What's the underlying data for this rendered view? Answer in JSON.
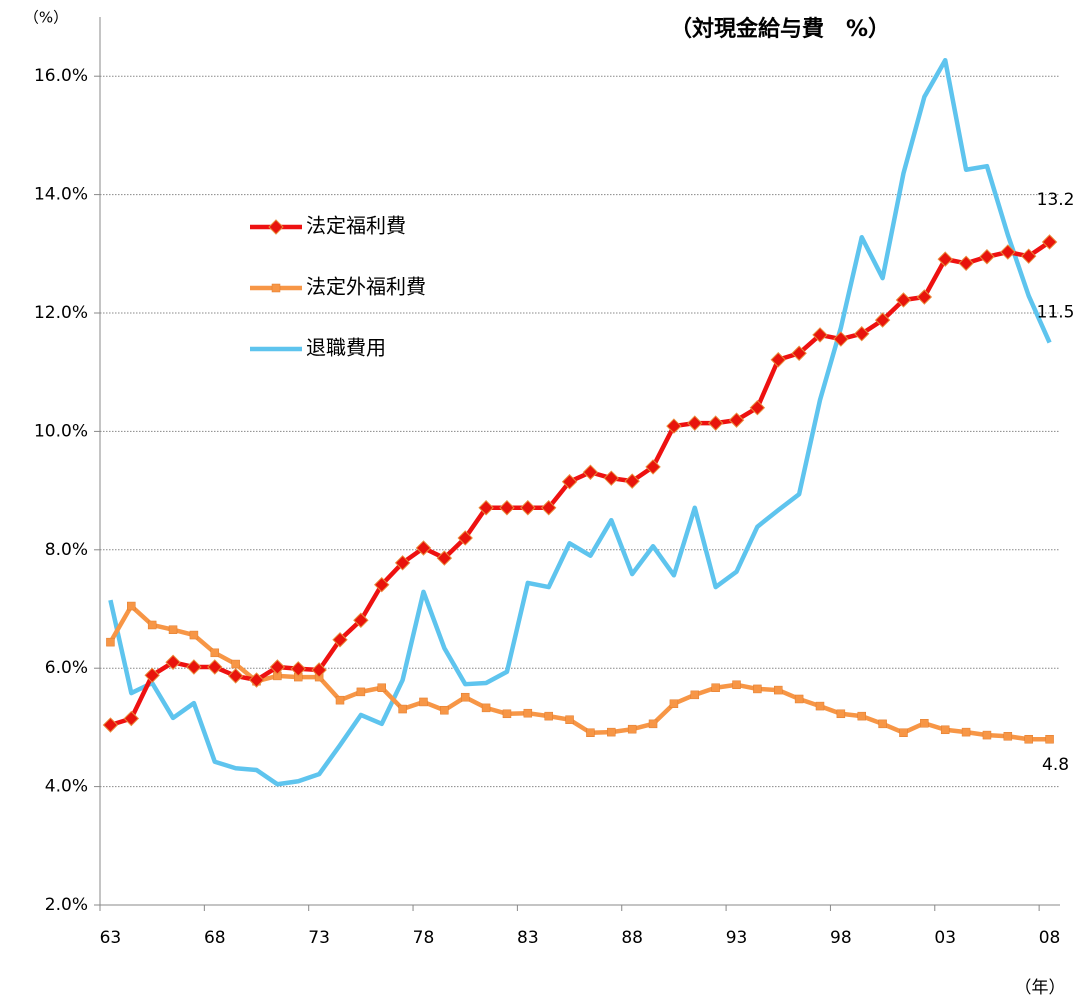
{
  "chart_data": {
    "type": "line",
    "title": "（対現金給与費　%）",
    "y_unit": "（%）",
    "x_unit": "（年）",
    "categories": [
      "63",
      null,
      null,
      null,
      null,
      "68",
      null,
      null,
      null,
      null,
      "73",
      null,
      null,
      null,
      null,
      "78",
      null,
      null,
      null,
      null,
      "83",
      null,
      null,
      null,
      null,
      "88",
      null,
      null,
      null,
      null,
      "93",
      null,
      null,
      null,
      null,
      "98",
      null,
      null,
      null,
      null,
      "03",
      null,
      null,
      null,
      null,
      "08"
    ],
    "series": [
      {
        "name": "法定福利費",
        "color": "#ee1111",
        "marker": "diamond",
        "values": [
          5.04,
          5.15,
          5.88,
          6.1,
          6.02,
          6.02,
          5.87,
          5.8,
          6.02,
          5.99,
          5.97,
          6.48,
          6.81,
          7.41,
          7.78,
          8.03,
          7.86,
          8.2,
          8.71,
          8.71,
          8.71,
          8.71,
          9.15,
          9.31,
          9.21,
          9.16,
          9.4,
          10.09,
          10.14,
          10.14,
          10.19,
          10.4,
          11.21,
          11.32,
          11.63,
          11.56,
          11.65,
          11.88,
          12.22,
          12.27,
          12.91,
          12.84,
          12.95,
          13.03,
          12.96,
          13.2
        ]
      },
      {
        "name": "法定外福利費",
        "color": "#f79646",
        "marker": "square",
        "values": [
          6.44,
          7.05,
          6.73,
          6.65,
          6.56,
          6.26,
          6.07,
          5.78,
          5.87,
          5.85,
          5.85,
          5.46,
          5.6,
          5.67,
          5.31,
          5.43,
          5.29,
          5.51,
          5.33,
          5.23,
          5.24,
          5.19,
          5.13,
          4.91,
          4.92,
          4.97,
          5.06,
          5.4,
          5.55,
          5.67,
          5.72,
          5.65,
          5.63,
          5.48,
          5.36,
          5.23,
          5.19,
          5.06,
          4.91,
          5.07,
          4.96,
          4.92,
          4.87,
          4.85,
          4.8,
          4.8
        ]
      },
      {
        "name": "退職費用",
        "color": "#5ec4ee",
        "marker": "none",
        "values": [
          7.15,
          5.58,
          5.75,
          5.16,
          5.41,
          4.42,
          4.31,
          4.28,
          4.04,
          4.09,
          4.21,
          4.7,
          5.21,
          5.06,
          5.8,
          7.29,
          6.34,
          5.73,
          5.75,
          5.94,
          7.44,
          7.37,
          8.11,
          7.9,
          8.5,
          7.59,
          8.06,
          7.57,
          8.71,
          7.37,
          7.63,
          8.39,
          8.67,
          8.94,
          10.53,
          11.75,
          13.28,
          12.59,
          14.36,
          15.65,
          16.27,
          14.42,
          14.48,
          13.32,
          12.29,
          11.5
        ]
      }
    ],
    "ylim": [
      2,
      17
    ],
    "yticks": [
      {
        "value": 2,
        "label": "2.0%"
      },
      {
        "value": 4,
        "label": "4.0%"
      },
      {
        "value": 6,
        "label": "6.0%"
      },
      {
        "value": 8,
        "label": "8.0%"
      },
      {
        "value": 10,
        "label": "10.0%"
      },
      {
        "value": 12,
        "label": "12.0%"
      },
      {
        "value": 14,
        "label": "14.0%"
      },
      {
        "value": 16,
        "label": "16.0%"
      }
    ],
    "grid": true
  }
}
